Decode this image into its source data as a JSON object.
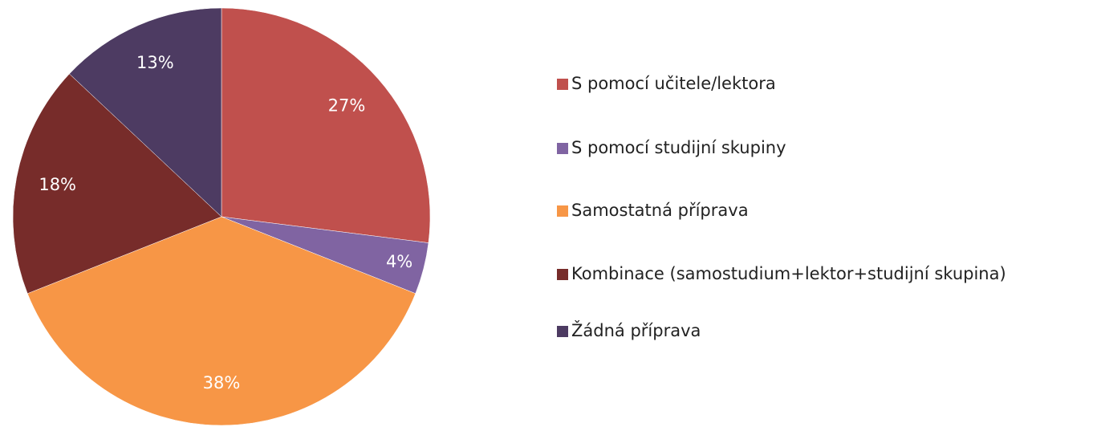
{
  "chart_data": {
    "type": "pie",
    "categories": [
      "S pomocí učitele/lektora",
      "S pomocí studijní skupiny",
      "Samostatná příprava",
      "Kombinace (samostudium+lektor+studijní skupina)",
      "Žádná příprava"
    ],
    "values": [
      27,
      4,
      38,
      18,
      13
    ],
    "value_labels": [
      "27%",
      "4%",
      "38%",
      "18%",
      "13%"
    ],
    "colors": [
      "#c0504d",
      "#8064a2",
      "#f79646",
      "#772c2a",
      "#4d3b62"
    ],
    "legend": "right"
  }
}
